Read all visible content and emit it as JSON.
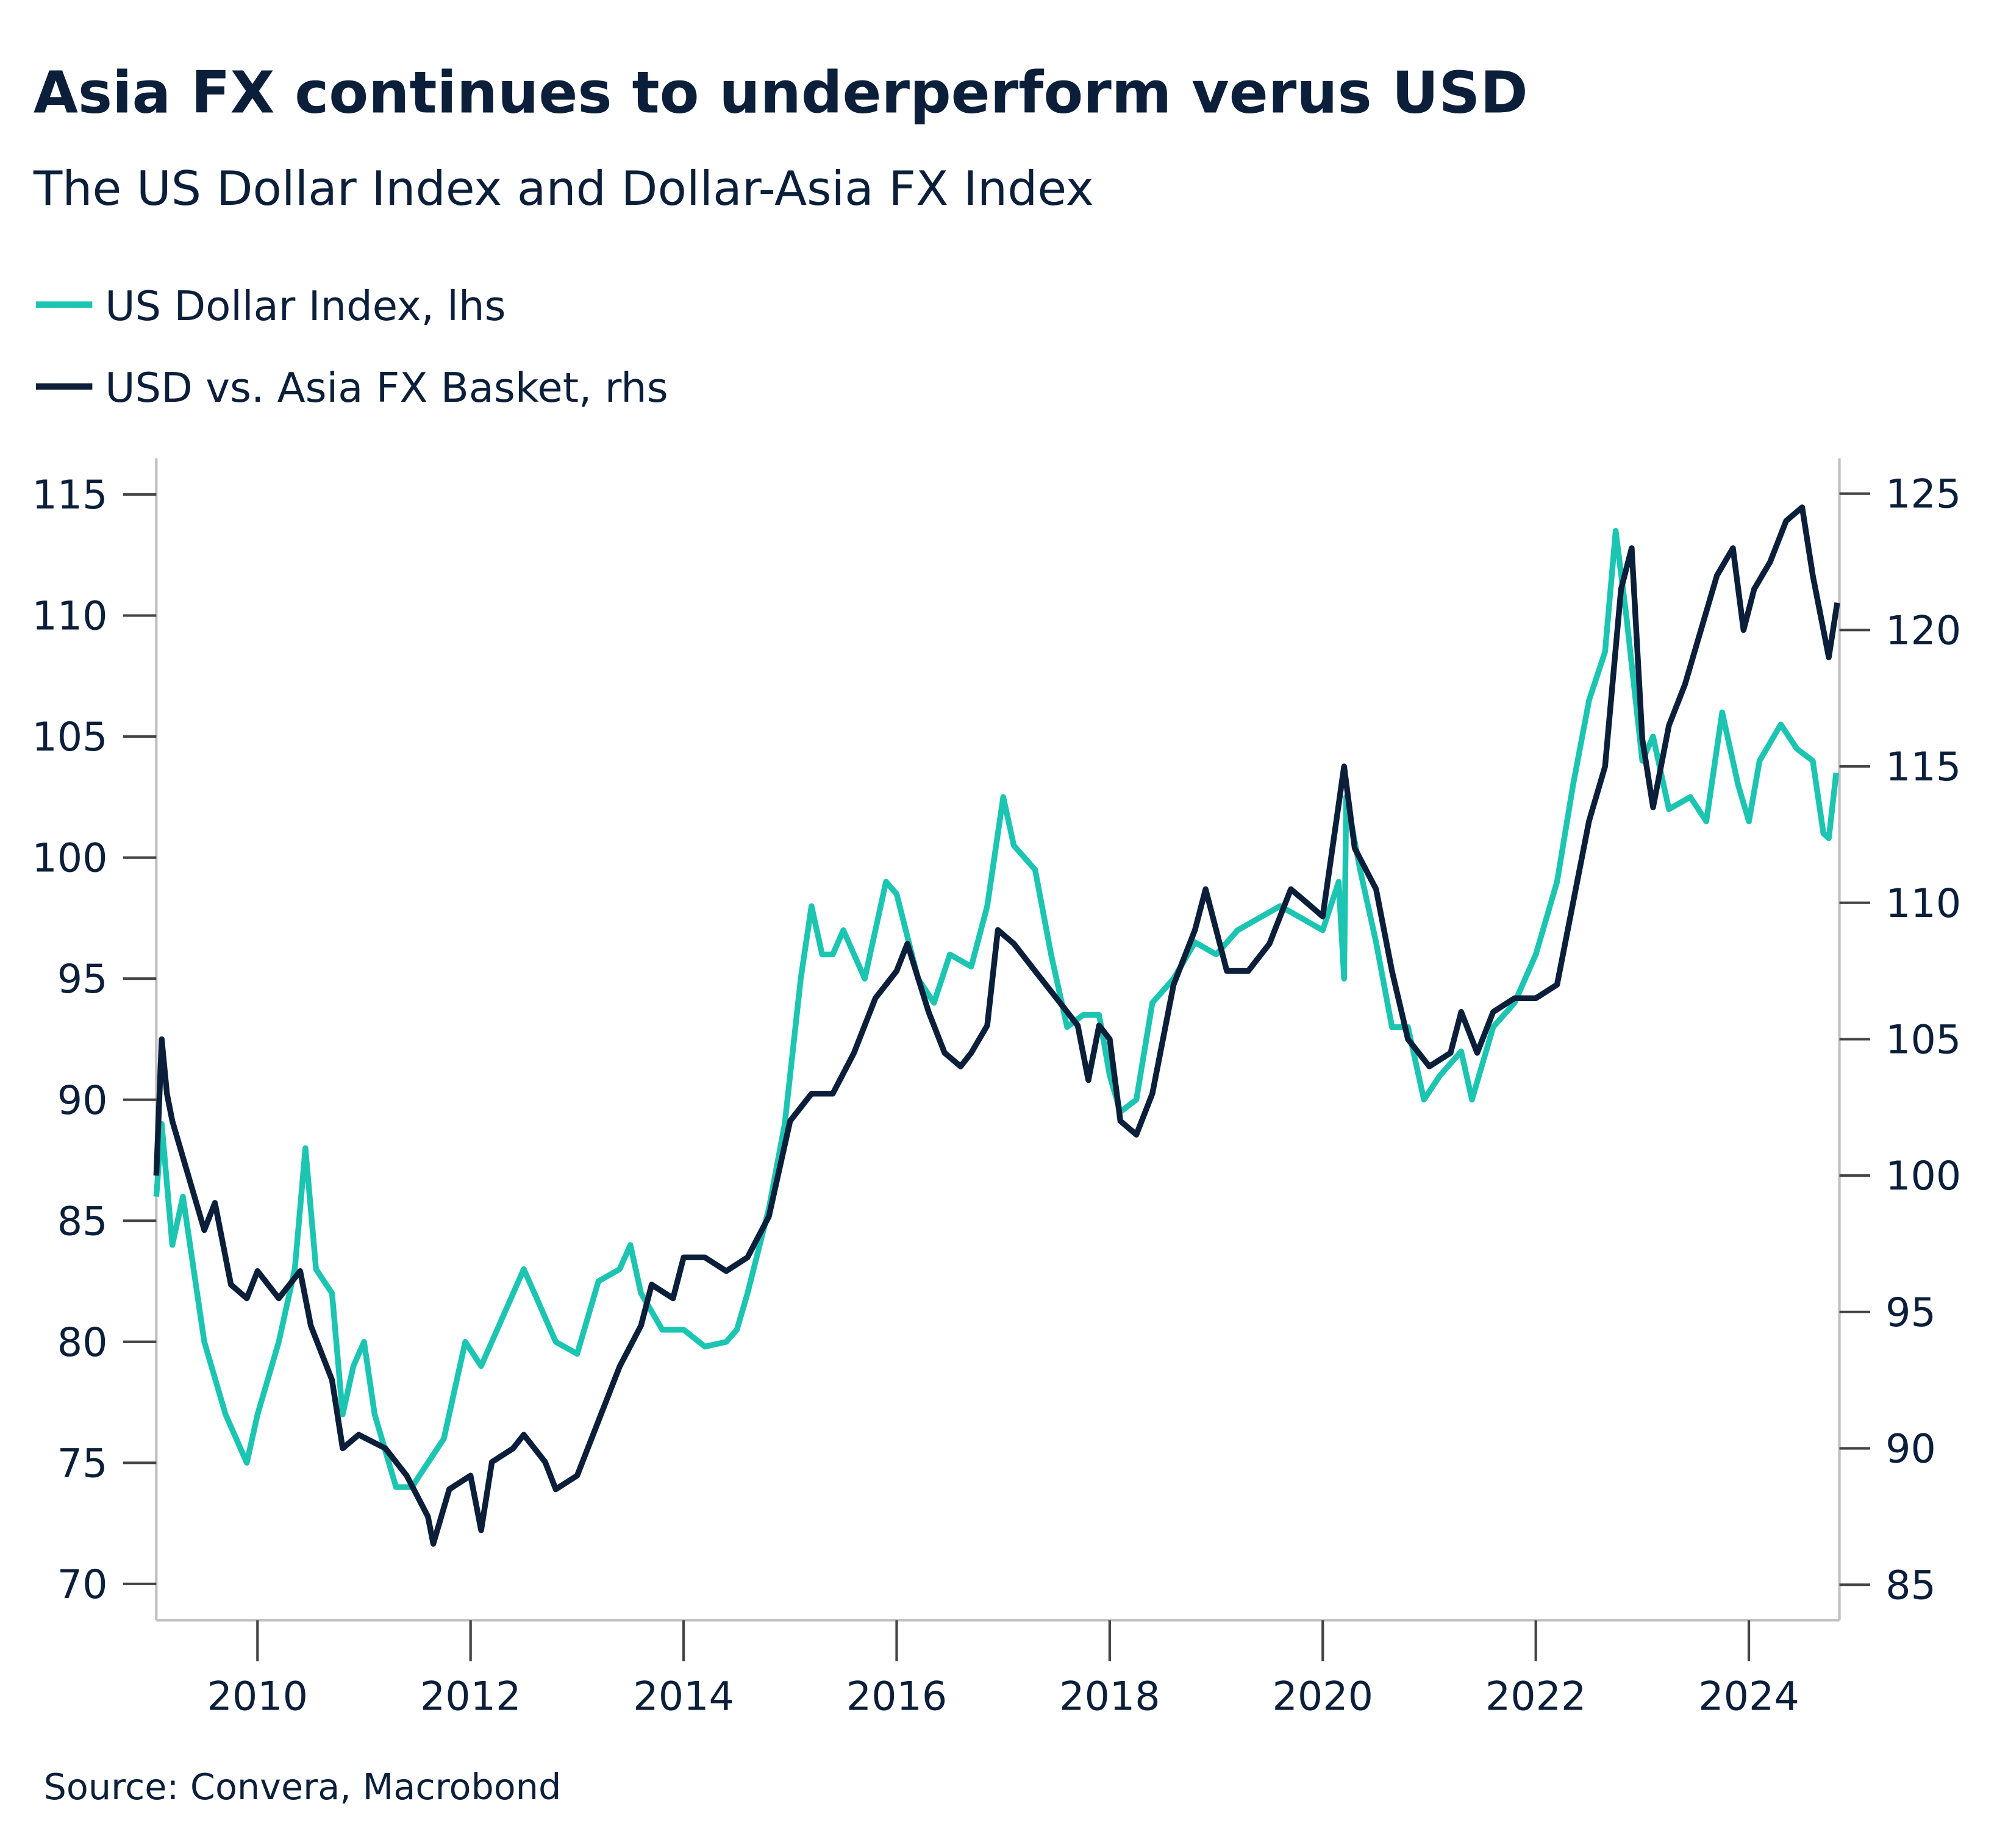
{
  "chart_data": {
    "type": "line",
    "title": "Asia FX continues to underperform verus USD",
    "subtitle": "The US Dollar Index and Dollar-Asia FX Index",
    "source": "Source: Convera, Macrobond",
    "legend_placement": "top-left",
    "grid": false,
    "xlim": [
      2009.05,
      2024.85
    ],
    "x_ticks": [
      "2010",
      "2012",
      "2014",
      "2016",
      "2018",
      "2020",
      "2022",
      "2024"
    ],
    "y_left": {
      "lim": [
        68.5,
        116.5
      ],
      "ticks": [
        "115",
        "110",
        "105",
        "100",
        "95",
        "90",
        "85",
        "80",
        "75",
        "70"
      ]
    },
    "y_right": {
      "lim": [
        83.7,
        126.3
      ],
      "ticks": [
        "125",
        "120",
        "115",
        "110",
        "105",
        "100",
        "95",
        "90",
        "85"
      ]
    },
    "series": [
      {
        "name": "US Dollar Index, lhs",
        "axis": "left",
        "color": "#1cc5b2",
        "x": [
          2009.05,
          2009.1,
          2009.2,
          2009.3,
          2009.5,
          2009.7,
          2009.9,
          2010.0,
          2010.2,
          2010.35,
          2010.45,
          2010.55,
          2010.7,
          2010.8,
          2010.9,
          2011.0,
          2011.1,
          2011.3,
          2011.45,
          2011.6,
          2011.75,
          2011.85,
          2011.95,
          2012.1,
          2012.4,
          2012.5,
          2012.6,
          2012.8,
          2013.0,
          2013.2,
          2013.4,
          2013.5,
          2013.6,
          2013.8,
          2014.0,
          2014.2,
          2014.4,
          2014.5,
          2014.6,
          2014.8,
          2014.95,
          2015.1,
          2015.2,
          2015.3,
          2015.4,
          2015.5,
          2015.7,
          2015.9,
          2016.0,
          2016.2,
          2016.35,
          2016.5,
          2016.7,
          2016.85,
          2017.0,
          2017.1,
          2017.3,
          2017.45,
          2017.6,
          2017.75,
          2017.9,
          2018.0,
          2018.1,
          2018.25,
          2018.4,
          2018.6,
          2018.8,
          2019.0,
          2019.2,
          2019.4,
          2019.6,
          2019.8,
          2020.0,
          2020.15,
          2020.2,
          2020.22,
          2020.35,
          2020.5,
          2020.65,
          2020.8,
          2020.95,
          2021.1,
          2021.3,
          2021.4,
          2021.6,
          2021.8,
          2022.0,
          2022.2,
          2022.35,
          2022.5,
          2022.65,
          2022.75,
          2022.85,
          2023.0,
          2023.1,
          2023.25,
          2023.45,
          2023.6,
          2023.75,
          2023.9,
          2024.0,
          2024.1,
          2024.3,
          2024.45,
          2024.6,
          2024.7,
          2024.75,
          2024.82
        ],
        "y": [
          86,
          89,
          84,
          86,
          80,
          77,
          75,
          77,
          80,
          83,
          88,
          83,
          82,
          77,
          79,
          80,
          77,
          74,
          74,
          75,
          76,
          78,
          80,
          79,
          82,
          83,
          82,
          80,
          79.5,
          82.5,
          83,
          84,
          82,
          80.5,
          80.5,
          79.8,
          80,
          80.5,
          82,
          85.5,
          89,
          95,
          98,
          96,
          96,
          97,
          95,
          99,
          98.5,
          95,
          94,
          96,
          95.5,
          98,
          102.5,
          100.5,
          99.5,
          96,
          93,
          93.5,
          93.5,
          91,
          89.5,
          90,
          94,
          95,
          96.5,
          96,
          97,
          97.5,
          98,
          97.5,
          97,
          99,
          95,
          102.5,
          99.5,
          96.5,
          93,
          93,
          90,
          91,
          92,
          90,
          93,
          94,
          96,
          99,
          103,
          106.5,
          108.5,
          113.5,
          110,
          104,
          105,
          102,
          102.5,
          101.5,
          106,
          103,
          101.5,
          104,
          105.5,
          104.5,
          104,
          101,
          100.8,
          103.5
        ]
      },
      {
        "name": "USD vs. Asia FX Basket, rhs",
        "axis": "right",
        "color": "#0b1f3a",
        "x": [
          2009.05,
          2009.1,
          2009.15,
          2009.2,
          2009.35,
          2009.5,
          2009.6,
          2009.75,
          2009.9,
          2010.0,
          2010.2,
          2010.4,
          2010.5,
          2010.7,
          2010.8,
          2010.95,
          2011.2,
          2011.4,
          2011.6,
          2011.65,
          2011.8,
          2012.0,
          2012.1,
          2012.2,
          2012.4,
          2012.5,
          2012.7,
          2012.8,
          2013.0,
          2013.2,
          2013.4,
          2013.6,
          2013.7,
          2013.9,
          2014.0,
          2014.2,
          2014.4,
          2014.6,
          2014.8,
          2015.0,
          2015.2,
          2015.4,
          2015.6,
          2015.8,
          2016.0,
          2016.1,
          2016.3,
          2016.45,
          2016.6,
          2016.7,
          2016.85,
          2016.95,
          2017.1,
          2017.3,
          2017.5,
          2017.7,
          2017.8,
          2017.9,
          2018.0,
          2018.1,
          2018.25,
          2018.4,
          2018.6,
          2018.8,
          2018.9,
          2019.0,
          2019.1,
          2019.3,
          2019.5,
          2019.7,
          2019.85,
          2020.0,
          2020.2,
          2020.3,
          2020.5,
          2020.65,
          2020.8,
          2021.0,
          2021.2,
          2021.3,
          2021.45,
          2021.6,
          2021.8,
          2022.0,
          2022.2,
          2022.35,
          2022.5,
          2022.65,
          2022.8,
          2022.9,
          2023.0,
          2023.1,
          2023.25,
          2023.4,
          2023.55,
          2023.7,
          2023.85,
          2023.95,
          2024.05,
          2024.2,
          2024.35,
          2024.5,
          2024.6,
          2024.75,
          2024.83
        ],
        "y": [
          100,
          105,
          103,
          102,
          100,
          98,
          99,
          96,
          95.5,
          96.5,
          95.5,
          96.5,
          94.5,
          92.5,
          90,
          90.5,
          90,
          89,
          87.5,
          86.5,
          88.5,
          89,
          87,
          89.5,
          90,
          90.5,
          89.5,
          88.5,
          89,
          91,
          93,
          94.5,
          96,
          95.5,
          97,
          97,
          96.5,
          97,
          98.5,
          102,
          103,
          103,
          104.5,
          106.5,
          107.5,
          108.5,
          106,
          104.5,
          104,
          104.5,
          105.5,
          109,
          108.5,
          107.5,
          106.5,
          105.5,
          103.5,
          105.5,
          105,
          102,
          101.5,
          103,
          107,
          109,
          110.5,
          109,
          107.5,
          107.5,
          108.5,
          110.5,
          110,
          109.5,
          115,
          112,
          110.5,
          107.5,
          105,
          104,
          104.5,
          106,
          104.5,
          106,
          106.5,
          106.5,
          107,
          110,
          113,
          115,
          121.5,
          123,
          116,
          113.5,
          116.5,
          118,
          120,
          122,
          123,
          120,
          121.5,
          122.5,
          124,
          124.5,
          122,
          119,
          121
        ]
      }
    ]
  }
}
